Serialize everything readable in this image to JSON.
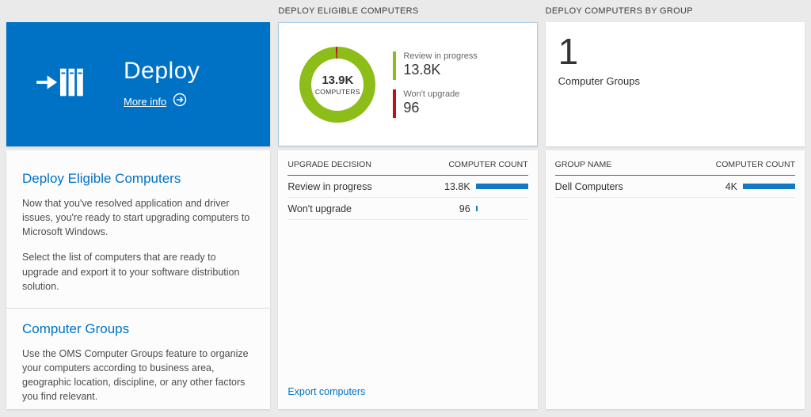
{
  "colors": {
    "accent_blue": "#0072c6",
    "bar_blue": "#1079c2",
    "donut_green": "#8cbd18",
    "alert_red": "#ba141a"
  },
  "left_panel": {
    "tile": {
      "title": "Deploy",
      "more_info_label": "More info"
    },
    "sections": [
      {
        "heading": "Deploy Eligible Computers",
        "paragraphs": [
          "Now that you've resolved application and driver issues, you're ready to start upgrading computers to Microsoft Windows.",
          "Select the list of computers that are ready to upgrade and export it to your software distribution solution."
        ]
      },
      {
        "heading": "Computer Groups",
        "paragraphs": [
          "Use the OMS Computer Groups feature to organize your computers according to business area, geographic location, discipline, or any other factors you find relevant."
        ]
      }
    ]
  },
  "eligible_panel": {
    "header": "DEPLOY ELIGIBLE COMPUTERS",
    "donut_center": {
      "value": "13.9K",
      "label": "COMPUTERS"
    },
    "legend": [
      {
        "label": "Review in progress",
        "value": "13.8K"
      },
      {
        "label": "Won't upgrade",
        "value": "96"
      }
    ],
    "table": {
      "columns": [
        "UPGRADE DECISION",
        "COMPUTER COUNT"
      ],
      "rows": [
        {
          "label": "Review in progress",
          "value": "13.8K",
          "bar_pct": 100
        },
        {
          "label": "Won't upgrade",
          "value": "96",
          "bar_pct": 1
        }
      ]
    },
    "export_link": "Export computers"
  },
  "groups_panel": {
    "header": "DEPLOY COMPUTERS BY GROUP",
    "count_value": "1",
    "count_label": "Computer Groups",
    "table": {
      "columns": [
        "GROUP NAME",
        "COMPUTER COUNT"
      ],
      "rows": [
        {
          "label": "Dell Computers",
          "value": "4K",
          "bar_pct": 100
        }
      ]
    }
  },
  "chart_data": [
    {
      "type": "pie",
      "title": "DEPLOY ELIGIBLE COMPUTERS",
      "categories": [
        "Review in progress",
        "Won't upgrade"
      ],
      "values": [
        13800,
        96
      ],
      "colors": [
        "#8cbd18",
        "#ba141a"
      ],
      "center_label": "13.9K COMPUTERS",
      "legend_position": "right"
    },
    {
      "type": "bar",
      "title": "DEPLOY COMPUTERS BY GROUP",
      "categories": [
        "Dell Computers"
      ],
      "values": [
        4000
      ],
      "value_labels": [
        "4K"
      ],
      "xlabel": "GROUP NAME",
      "ylabel": "COMPUTER COUNT"
    }
  ]
}
